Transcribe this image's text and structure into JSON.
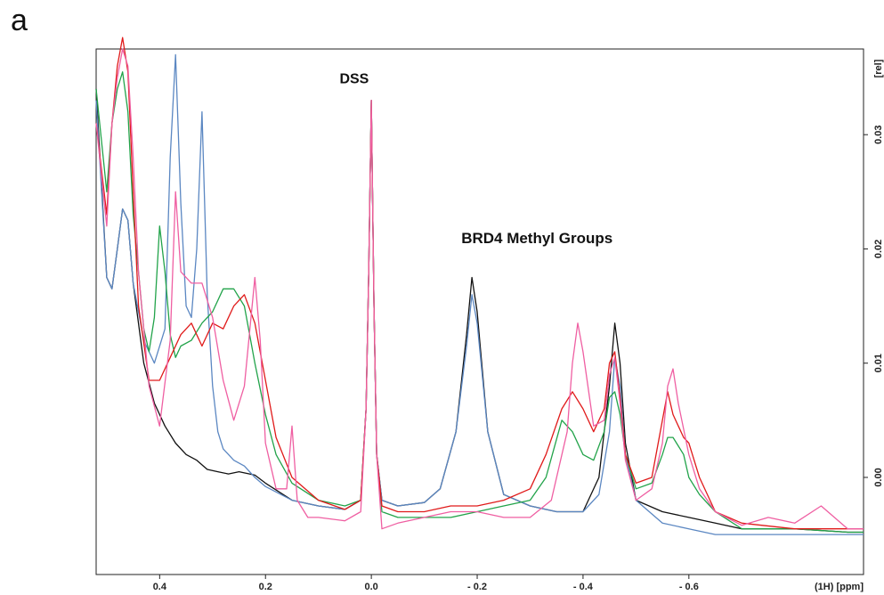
{
  "panel_label": "a",
  "chart_data": {
    "type": "line",
    "title": "",
    "xlabel": "(1H) [ppm]",
    "ylabel": "[rel]",
    "xlim": [
      0.52,
      -0.93
    ],
    "ylim": [
      -0.0085,
      0.0375
    ],
    "x_ticks": [
      {
        "value": 0.4,
        "label": "0.4"
      },
      {
        "value": 0.2,
        "label": "0.2"
      },
      {
        "value": 0.0,
        "label": "0.0"
      },
      {
        "value": -0.2,
        "label": "- 0.2"
      },
      {
        "value": -0.4,
        "label": "- 0.4"
      },
      {
        "value": -0.6,
        "label": "- 0.6"
      }
    ],
    "y_ticks": [
      {
        "value": 0.0,
        "label": "0.00"
      },
      {
        "value": 0.01,
        "label": "0.01"
      },
      {
        "value": 0.02,
        "label": "0.02"
      },
      {
        "value": 0.03,
        "label": "0.03"
      }
    ],
    "annotations": [
      {
        "text": "DSS",
        "x": 0.06,
        "y": 0.0345
      },
      {
        "text": "BRD4 Methyl Groups",
        "x": -0.17,
        "y": 0.0205
      }
    ],
    "grid": false,
    "legend": "none",
    "series": [
      {
        "color": "#111111",
        "x": [
          0.52,
          0.5,
          0.49,
          0.48,
          0.47,
          0.46,
          0.45,
          0.43,
          0.41,
          0.39,
          0.37,
          0.35,
          0.33,
          0.31,
          0.29,
          0.27,
          0.25,
          0.22,
          0.2,
          0.15,
          0.1,
          0.05,
          0.02,
          0.01,
          0.005,
          0.0,
          -0.005,
          -0.01,
          -0.02,
          -0.05,
          -0.1,
          -0.13,
          -0.16,
          -0.18,
          -0.19,
          -0.2,
          -0.22,
          -0.25,
          -0.3,
          -0.35,
          -0.4,
          -0.43,
          -0.45,
          -0.46,
          -0.47,
          -0.48,
          -0.5,
          -0.55,
          -0.6,
          -0.65,
          -0.7,
          -0.8,
          -0.9,
          -0.93
        ],
        "y": [
          0.034,
          0.0175,
          0.0165,
          0.02,
          0.0235,
          0.0225,
          0.017,
          0.01,
          0.0065,
          0.0045,
          0.003,
          0.002,
          0.0015,
          0.0007,
          0.0005,
          0.0003,
          0.0005,
          0.0002,
          -0.0005,
          -0.002,
          -0.0025,
          -0.0028,
          -0.002,
          0.006,
          0.018,
          0.033,
          0.015,
          0.002,
          -0.002,
          -0.0025,
          -0.0022,
          -0.001,
          0.004,
          0.0125,
          0.0175,
          0.0145,
          0.004,
          -0.0015,
          -0.0025,
          -0.003,
          -0.003,
          0.0,
          0.008,
          0.0135,
          0.01,
          0.003,
          -0.002,
          -0.003,
          -0.0035,
          -0.004,
          -0.0045,
          -0.0045,
          -0.0048,
          -0.0048
        ]
      },
      {
        "color": "#5b87c2",
        "x": [
          0.52,
          0.5,
          0.49,
          0.48,
          0.47,
          0.46,
          0.45,
          0.43,
          0.41,
          0.39,
          0.38,
          0.37,
          0.36,
          0.35,
          0.34,
          0.33,
          0.32,
          0.31,
          0.3,
          0.29,
          0.28,
          0.26,
          0.24,
          0.22,
          0.2,
          0.15,
          0.1,
          0.05,
          0.02,
          0.01,
          0.005,
          0.0,
          -0.005,
          -0.01,
          -0.02,
          -0.05,
          -0.1,
          -0.13,
          -0.16,
          -0.18,
          -0.19,
          -0.2,
          -0.22,
          -0.25,
          -0.3,
          -0.35,
          -0.4,
          -0.43,
          -0.45,
          -0.46,
          -0.47,
          -0.48,
          -0.5,
          -0.55,
          -0.6,
          -0.65,
          -0.7,
          -0.8,
          -0.9,
          -0.93
        ],
        "y": [
          0.033,
          0.0175,
          0.0165,
          0.02,
          0.0235,
          0.0225,
          0.017,
          0.012,
          0.01,
          0.013,
          0.028,
          0.037,
          0.024,
          0.015,
          0.014,
          0.02,
          0.032,
          0.016,
          0.008,
          0.004,
          0.0025,
          0.0015,
          0.001,
          0.0,
          -0.0008,
          -0.002,
          -0.0025,
          -0.0028,
          -0.002,
          0.006,
          0.018,
          0.033,
          0.015,
          0.002,
          -0.002,
          -0.0025,
          -0.0022,
          -0.001,
          0.004,
          0.0115,
          0.016,
          0.0135,
          0.004,
          -0.0015,
          -0.0025,
          -0.003,
          -0.003,
          -0.0015,
          0.004,
          0.0105,
          0.008,
          0.002,
          -0.002,
          -0.004,
          -0.0045,
          -0.005,
          -0.005,
          -0.005,
          -0.005,
          -0.005
        ]
      },
      {
        "color": "#22a34a",
        "x": [
          0.52,
          0.5,
          0.49,
          0.48,
          0.47,
          0.46,
          0.45,
          0.43,
          0.42,
          0.41,
          0.4,
          0.39,
          0.38,
          0.37,
          0.36,
          0.34,
          0.32,
          0.3,
          0.28,
          0.26,
          0.24,
          0.22,
          0.2,
          0.18,
          0.15,
          0.1,
          0.05,
          0.02,
          0.01,
          0.005,
          0.0,
          -0.005,
          -0.01,
          -0.02,
          -0.05,
          -0.1,
          -0.15,
          -0.2,
          -0.25,
          -0.3,
          -0.33,
          -0.36,
          -0.38,
          -0.4,
          -0.42,
          -0.44,
          -0.45,
          -0.46,
          -0.47,
          -0.48,
          -0.5,
          -0.53,
          -0.55,
          -0.56,
          -0.57,
          -0.59,
          -0.6,
          -0.62,
          -0.65,
          -0.7,
          -0.8,
          -0.9,
          -0.93
        ],
        "y": [
          0.034,
          0.025,
          0.031,
          0.034,
          0.0355,
          0.032,
          0.023,
          0.013,
          0.011,
          0.014,
          0.022,
          0.018,
          0.0125,
          0.0105,
          0.0115,
          0.012,
          0.0135,
          0.0145,
          0.0165,
          0.0165,
          0.015,
          0.01,
          0.0055,
          0.002,
          -0.0005,
          -0.002,
          -0.0025,
          -0.002,
          0.006,
          0.018,
          0.033,
          0.015,
          0.002,
          -0.003,
          -0.0035,
          -0.0035,
          -0.0035,
          -0.003,
          -0.0025,
          -0.002,
          0.0,
          0.005,
          0.004,
          0.002,
          0.0015,
          0.004,
          0.007,
          0.0075,
          0.0055,
          0.002,
          -0.001,
          -0.0005,
          0.002,
          0.0035,
          0.0035,
          0.002,
          0.0,
          -0.0015,
          -0.003,
          -0.0045,
          -0.0045,
          -0.0048,
          -0.0048
        ]
      },
      {
        "color": "#e01a1a",
        "x": [
          0.52,
          0.5,
          0.49,
          0.48,
          0.47,
          0.46,
          0.45,
          0.44,
          0.42,
          0.4,
          0.38,
          0.36,
          0.34,
          0.32,
          0.3,
          0.28,
          0.26,
          0.24,
          0.22,
          0.2,
          0.18,
          0.15,
          0.1,
          0.05,
          0.02,
          0.01,
          0.005,
          0.0,
          -0.005,
          -0.01,
          -0.02,
          -0.05,
          -0.1,
          -0.15,
          -0.2,
          -0.25,
          -0.3,
          -0.33,
          -0.36,
          -0.38,
          -0.4,
          -0.42,
          -0.44,
          -0.45,
          -0.46,
          -0.47,
          -0.48,
          -0.5,
          -0.53,
          -0.55,
          -0.56,
          -0.57,
          -0.59,
          -0.6,
          -0.62,
          -0.65,
          -0.7,
          -0.8,
          -0.9,
          -0.93
        ],
        "y": [
          0.031,
          0.023,
          0.031,
          0.036,
          0.0385,
          0.0355,
          0.025,
          0.015,
          0.0085,
          0.0085,
          0.0105,
          0.0125,
          0.0135,
          0.0115,
          0.0135,
          0.013,
          0.015,
          0.016,
          0.0135,
          0.0085,
          0.0035,
          0.0,
          -0.002,
          -0.0028,
          -0.002,
          0.006,
          0.018,
          0.033,
          0.015,
          0.002,
          -0.0025,
          -0.003,
          -0.003,
          -0.0025,
          -0.0025,
          -0.002,
          -0.001,
          0.002,
          0.006,
          0.0075,
          0.006,
          0.004,
          0.006,
          0.01,
          0.011,
          0.007,
          0.002,
          -0.0005,
          0.0,
          0.005,
          0.0075,
          0.0055,
          0.0035,
          0.003,
          0.0,
          -0.003,
          -0.004,
          -0.0045,
          -0.0045,
          -0.0045
        ]
      },
      {
        "color": "#ef5fa2",
        "x": [
          0.52,
          0.5,
          0.49,
          0.48,
          0.47,
          0.46,
          0.45,
          0.44,
          0.42,
          0.4,
          0.38,
          0.37,
          0.36,
          0.34,
          0.32,
          0.3,
          0.28,
          0.26,
          0.24,
          0.22,
          0.21,
          0.2,
          0.18,
          0.16,
          0.15,
          0.14,
          0.12,
          0.1,
          0.05,
          0.02,
          0.01,
          0.005,
          0.0,
          -0.005,
          -0.01,
          -0.02,
          -0.05,
          -0.1,
          -0.15,
          -0.2,
          -0.25,
          -0.3,
          -0.34,
          -0.37,
          -0.38,
          -0.39,
          -0.4,
          -0.42,
          -0.44,
          -0.45,
          -0.46,
          -0.47,
          -0.48,
          -0.5,
          -0.53,
          -0.55,
          -0.56,
          -0.57,
          -0.58,
          -0.6,
          -0.62,
          -0.65,
          -0.7,
          -0.75,
          -0.8,
          -0.85,
          -0.9,
          -0.93
        ],
        "y": [
          0.031,
          0.022,
          0.031,
          0.035,
          0.0375,
          0.036,
          0.028,
          0.018,
          0.008,
          0.0045,
          0.012,
          0.025,
          0.018,
          0.017,
          0.017,
          0.014,
          0.0085,
          0.005,
          0.008,
          0.0175,
          0.012,
          0.003,
          -0.001,
          -0.001,
          0.0045,
          -0.002,
          -0.0035,
          -0.0035,
          -0.0038,
          -0.003,
          0.006,
          0.018,
          0.033,
          0.015,
          0.002,
          -0.0045,
          -0.004,
          -0.0035,
          -0.003,
          -0.003,
          -0.0035,
          -0.0035,
          -0.002,
          0.004,
          0.01,
          0.0135,
          0.011,
          0.0045,
          0.005,
          0.009,
          0.0105,
          0.0065,
          0.0015,
          -0.002,
          -0.001,
          0.003,
          0.008,
          0.0095,
          0.0065,
          0.002,
          -0.001,
          -0.003,
          -0.0042,
          -0.0035,
          -0.004,
          -0.0025,
          -0.0045,
          -0.0045
        ]
      }
    ]
  }
}
